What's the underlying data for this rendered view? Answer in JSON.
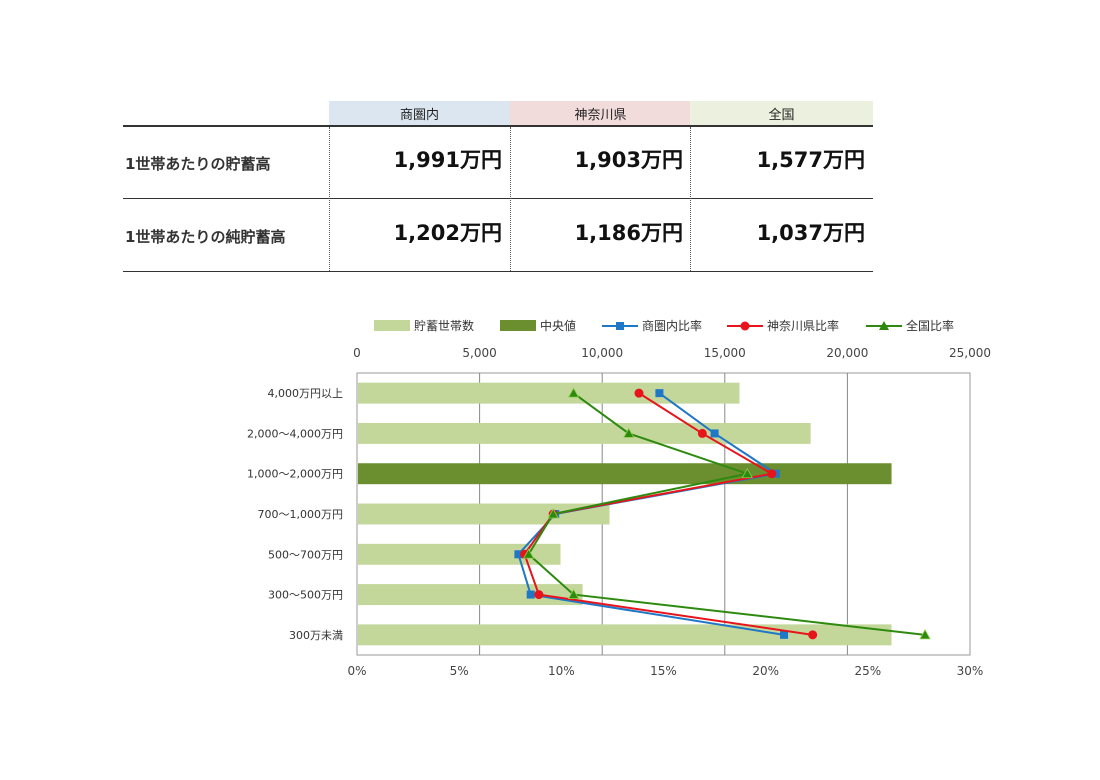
{
  "table": {
    "columns": [
      "商圏内",
      "神奈川県",
      "全国"
    ],
    "column_colors": [
      "#dce6f1",
      "#f2dcdb",
      "#ebf1de"
    ],
    "rows": [
      {
        "label": "1世帯あたりの貯蓄高",
        "values": [
          "1,991万円",
          "1,903万円",
          "1,577万円"
        ]
      },
      {
        "label": "1世帯あたりの純貯蓄高",
        "values": [
          "1,202万円",
          "1,186万円",
          "1,037万円"
        ]
      }
    ]
  },
  "chart_data": {
    "type": "bar",
    "orientation": "horizontal",
    "categories": [
      "4,000万円以上",
      "2,000～4,000万円",
      "1,000～2,000万円",
      "700～1,000万円",
      "500～700万円",
      "300～500万円",
      "300万未満"
    ],
    "top_axis": {
      "ticks": [
        "0",
        "5,000",
        "10,000",
        "15,000",
        "20,000",
        "25,000"
      ],
      "range": [
        0,
        25000
      ]
    },
    "bottom_axis": {
      "ticks": [
        "0%",
        "5%",
        "10%",
        "15%",
        "20%",
        "25%",
        "30%"
      ],
      "range": [
        0,
        30
      ]
    },
    "bars": {
      "name": "貯蓄世帯数",
      "values": [
        15600,
        18500,
        21800,
        10300,
        8300,
        9200,
        21800
      ],
      "color": "#c4d79b",
      "median_name": "中央値",
      "median_index": 2,
      "median_color": "#6b8e2e"
    },
    "series": [
      {
        "name": "商圏内比率",
        "values": [
          14.8,
          17.5,
          20.5,
          9.7,
          7.9,
          8.5,
          20.9
        ],
        "color": "#1f77c8",
        "marker": "square"
      },
      {
        "name": "神奈川県比率",
        "values": [
          13.8,
          16.9,
          20.3,
          9.6,
          8.2,
          8.9,
          22.3
        ],
        "color": "#e8141b",
        "marker": "circle"
      },
      {
        "name": "全国比率",
        "values": [
          10.6,
          13.3,
          19.1,
          9.6,
          8.4,
          10.6,
          27.8
        ],
        "color": "#2d8a0e",
        "marker": "triangle"
      }
    ],
    "legend_position": "top",
    "grid": true
  }
}
